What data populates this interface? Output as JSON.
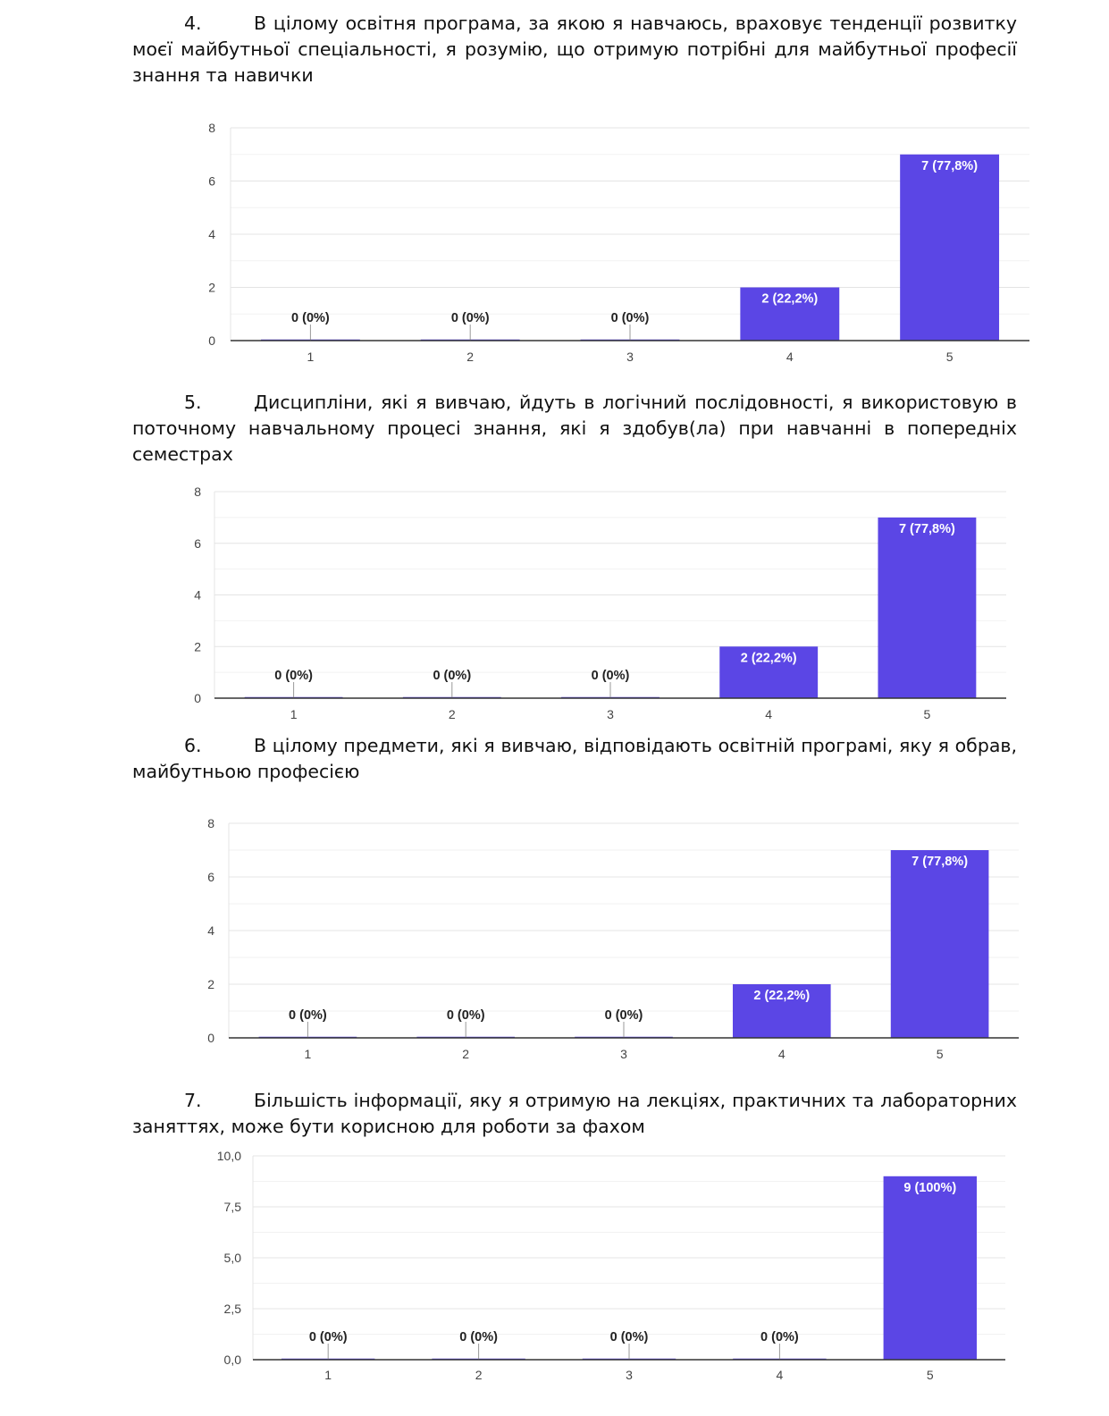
{
  "questions": [
    {
      "number": "4.",
      "text": "В цілому освітня програма, за якою я навчаюсь, враховує тенденції розвитку моєї майбутньої спеціальності, я розумію, що отримую потрібні для майбутньої професії знання та навички"
    },
    {
      "number": "5.",
      "text": "Дисципліни, які я вивчаю, йдуть в логічний послідовності, я використовую в поточному навчальному процесі знання, які я здобув(ла) при навчанні в попередніх семестрах"
    },
    {
      "number": "6.",
      "text": "В цілому предмети, які я вивчаю, відповідають освітній програмі, яку я обрав, майбутньою професією"
    },
    {
      "number": "7.",
      "text": "Більшість інформації, яку я отримую на лекціях, практичних та лабораторних заняттях, може бути корисною для роботи за фахом"
    }
  ],
  "colors": {
    "bar": "#5b46e5",
    "grid": "#e6e6e6",
    "axis": "#333333"
  },
  "chart_data": [
    {
      "type": "bar",
      "categories": [
        "1",
        "2",
        "3",
        "4",
        "5"
      ],
      "values": [
        0,
        0,
        0,
        2,
        7
      ],
      "data_labels": [
        "0 (0%)",
        "0 (0%)",
        "0 (0%)",
        "2 (22,2%)",
        "7 (77,8%)"
      ],
      "yticks": [
        "0",
        "2",
        "4",
        "6",
        "8"
      ],
      "ylim": [
        0,
        8
      ],
      "grid": true
    },
    {
      "type": "bar",
      "categories": [
        "1",
        "2",
        "3",
        "4",
        "5"
      ],
      "values": [
        0,
        0,
        0,
        2,
        7
      ],
      "data_labels": [
        "0 (0%)",
        "0 (0%)",
        "0 (0%)",
        "2 (22,2%)",
        "7 (77,8%)"
      ],
      "yticks": [
        "0",
        "2",
        "4",
        "6",
        "8"
      ],
      "ylim": [
        0,
        8
      ],
      "grid": true
    },
    {
      "type": "bar",
      "categories": [
        "1",
        "2",
        "3",
        "4",
        "5"
      ],
      "values": [
        0,
        0,
        0,
        2,
        7
      ],
      "data_labels": [
        "0 (0%)",
        "0 (0%)",
        "0 (0%)",
        "2 (22,2%)",
        "7 (77,8%)"
      ],
      "yticks": [
        "0",
        "2",
        "4",
        "6",
        "8"
      ],
      "ylim": [
        0,
        8
      ],
      "grid": true
    },
    {
      "type": "bar",
      "categories": [
        "1",
        "2",
        "3",
        "4",
        "5"
      ],
      "values": [
        0,
        0,
        0,
        0,
        9
      ],
      "data_labels": [
        "0 (0%)",
        "0 (0%)",
        "0 (0%)",
        "0 (0%)",
        "9 (100%)"
      ],
      "yticks": [
        "0,0",
        "2,5",
        "5,0",
        "7,5",
        "10,0"
      ],
      "ylim": [
        0,
        10
      ],
      "grid": true
    }
  ]
}
